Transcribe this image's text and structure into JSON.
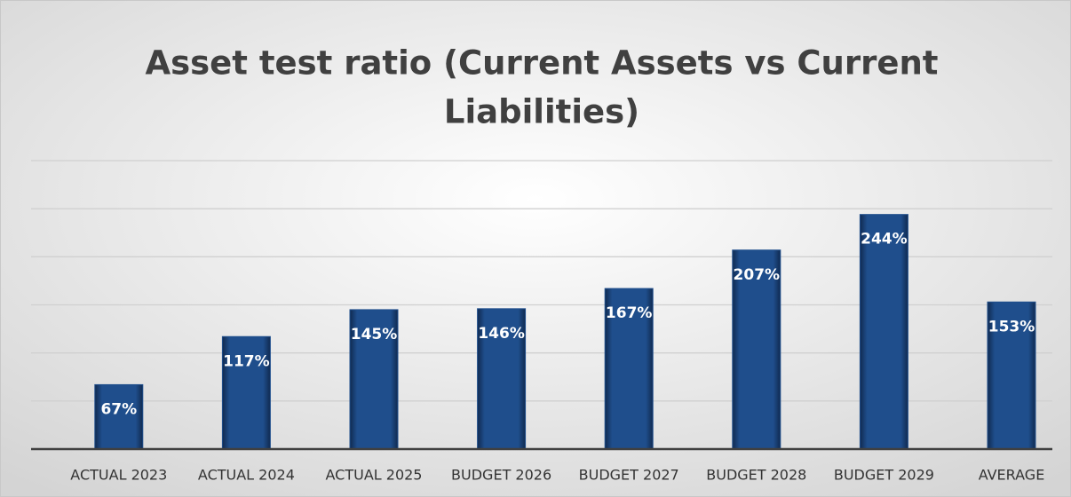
{
  "chart_data": {
    "type": "bar",
    "title_lines": [
      "Asset test ratio (Current Assets vs Current",
      "Liabilities)"
    ],
    "categories": [
      "ACTUAL 2023",
      "ACTUAL 2024",
      "ACTUAL 2025",
      "BUDGET 2026",
      "BUDGET 2027",
      "BUDGET 2028",
      "BUDGET 2029",
      "AVERAGE"
    ],
    "values": [
      67,
      117,
      145,
      146,
      167,
      207,
      244,
      153
    ],
    "value_labels": [
      "67%",
      "117%",
      "145%",
      "146%",
      "167%",
      "207%",
      "244%",
      "153%"
    ],
    "color": "#1f4e8c",
    "ylim": [
      0,
      300
    ],
    "yticks": [
      0,
      50,
      100,
      150,
      200,
      250,
      300
    ],
    "grid": true
  }
}
